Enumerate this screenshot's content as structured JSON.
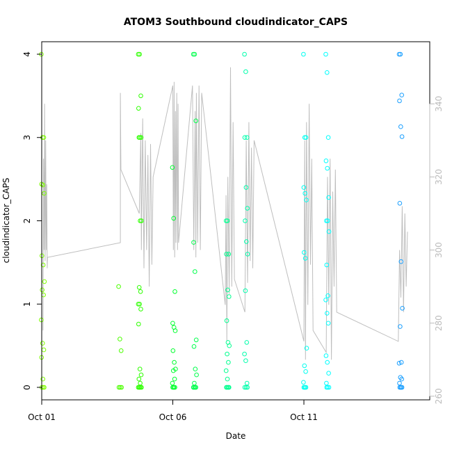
{
  "chart_data": {
    "type": "scatter",
    "title": "ATOM3 Southbound cloudindicator_CAPS",
    "xlabel": "Date",
    "ylabel": "cloudindicator_CAPS",
    "xlim_days": [
      0.0,
      14.8
    ],
    "ylim": [
      -0.15,
      4.15
    ],
    "y2lim": [
      259,
      357
    ],
    "x_ticks": [
      {
        "day": 0,
        "label": "Oct 01"
      },
      {
        "day": 5,
        "label": "Oct 06"
      },
      {
        "day": 10,
        "label": "Oct 11"
      }
    ],
    "y_ticks": [
      0,
      1,
      2,
      3,
      4
    ],
    "y2_ticks": [
      260,
      280,
      300,
      320,
      340
    ],
    "line_color": "#bebebe",
    "clusters": [
      {
        "day": 0.05,
        "color": "#7fff00",
        "values": [
          4,
          3,
          3,
          2.44,
          2.43,
          2.33,
          1.58,
          1.47,
          1.27,
          1.17,
          1.11,
          0.81,
          0.53,
          0.45,
          0.36,
          0.1,
          0,
          0,
          0
        ]
      },
      {
        "day": 3.0,
        "color": "#4cff00",
        "values": [
          1.21,
          0.58,
          0.44,
          0,
          0,
          0
        ]
      },
      {
        "day": 3.75,
        "color": "#2eff00",
        "values": [
          4,
          4,
          3.5,
          3.35,
          3,
          3,
          3,
          2,
          2,
          1.2,
          1.15,
          1,
          1,
          0.94,
          0.76,
          0.22,
          0.15,
          0.1,
          0.05,
          0,
          0,
          0,
          0,
          0
        ]
      },
      {
        "day": 5.05,
        "color": "#00ff2e",
        "values": [
          2.64,
          2.03,
          1.15,
          0.77,
          0.72,
          0.68,
          0.44,
          0.3,
          0.22,
          0.2,
          0.1,
          0.05,
          0,
          0,
          0,
          0
        ]
      },
      {
        "day": 5.85,
        "color": "#00ff4c",
        "values": [
          4,
          4,
          3.2,
          1.74,
          1.39,
          0.57,
          0.49,
          0.22,
          0.15,
          0.05,
          0,
          0,
          0,
          0,
          0
        ]
      },
      {
        "day": 7.1,
        "color": "#00ff8f",
        "values": [
          2,
          2,
          1.6,
          1.6,
          1.17,
          1.09,
          0.8,
          0.54,
          0.5,
          0.4,
          0.3,
          0.2,
          0.1,
          0,
          0,
          0,
          0,
          0
        ]
      },
      {
        "day": 7.8,
        "color": "#00ffac",
        "values": [
          4,
          3.79,
          3,
          3,
          2.4,
          2.15,
          2,
          1.75,
          1.6,
          1.16,
          0.54,
          0.4,
          0.32,
          0.05,
          0,
          0,
          0
        ]
      },
      {
        "day": 10.05,
        "color": "#00fff0",
        "values": [
          4,
          3,
          3,
          2.4,
          2.33,
          2.25,
          1.62,
          1.55,
          0.47,
          0.26,
          0.19,
          0.06,
          0,
          0,
          0,
          0
        ]
      },
      {
        "day": 10.9,
        "color": "#00ffff",
        "values": [
          4,
          3.78,
          3,
          2.72,
          2.63,
          2.28,
          2,
          2,
          1.87,
          1.47,
          1.1,
          1.05,
          0.89,
          0.77,
          0.38,
          0.3,
          0.17,
          0.05,
          0,
          0,
          0
        ]
      },
      {
        "day": 13.7,
        "color": "#1a9fff",
        "values": [
          4,
          4,
          3.51,
          3.44,
          3.13,
          3.01,
          2.21,
          1.51,
          0.95,
          0.73,
          0.3,
          0.29,
          0.12,
          0.1,
          0.05,
          0,
          0,
          0,
          0
        ]
      }
    ],
    "line_points": [
      [
        0.05,
        278
      ],
      [
        0.07,
        325
      ],
      [
        0.09,
        300
      ],
      [
        0.11,
        340
      ],
      [
        0.13,
        297
      ],
      [
        0.15,
        330
      ],
      [
        0.17,
        300
      ],
      [
        0.19,
        318
      ],
      [
        0.21,
        295
      ],
      [
        0.22,
        298
      ],
      [
        3.0,
        302
      ],
      [
        3.0,
        343
      ],
      [
        3.02,
        322
      ],
      [
        3.72,
        310
      ],
      [
        3.78,
        332
      ],
      [
        3.8,
        300
      ],
      [
        3.85,
        336
      ],
      [
        3.9,
        295
      ],
      [
        3.95,
        330
      ],
      [
        4.0,
        300
      ],
      [
        4.05,
        326
      ],
      [
        4.1,
        290
      ],
      [
        4.15,
        329
      ],
      [
        4.2,
        296
      ],
      [
        4.25,
        320
      ],
      [
        5.0,
        345
      ],
      [
        5.02,
        300
      ],
      [
        5.05,
        346
      ],
      [
        5.07,
        298
      ],
      [
        5.1,
        338
      ],
      [
        5.12,
        302
      ],
      [
        5.15,
        343
      ],
      [
        5.18,
        300
      ],
      [
        5.2,
        340
      ],
      [
        5.22,
        302
      ],
      [
        5.75,
        345
      ],
      [
        5.8,
        300
      ],
      [
        5.85,
        338
      ],
      [
        5.88,
        298
      ],
      [
        5.9,
        343
      ],
      [
        5.95,
        302
      ],
      [
        6.0,
        345
      ],
      [
        6.05,
        300
      ],
      [
        6.1,
        343
      ],
      [
        7.0,
        285
      ],
      [
        7.03,
        315
      ],
      [
        7.06,
        275
      ],
      [
        7.1,
        320
      ],
      [
        7.15,
        288
      ],
      [
        7.2,
        350
      ],
      [
        7.25,
        290
      ],
      [
        7.3,
        335
      ],
      [
        7.35,
        292
      ],
      [
        7.75,
        283
      ],
      [
        7.8,
        330
      ],
      [
        7.85,
        291
      ],
      [
        7.9,
        335
      ],
      [
        7.95,
        297
      ],
      [
        8.0,
        328
      ],
      [
        8.05,
        295
      ],
      [
        8.1,
        330
      ],
      [
        10.0,
        275
      ],
      [
        10.03,
        330
      ],
      [
        10.06,
        270
      ],
      [
        10.1,
        335
      ],
      [
        10.15,
        285
      ],
      [
        10.2,
        340
      ],
      [
        10.25,
        296
      ],
      [
        10.3,
        325
      ],
      [
        10.35,
        278
      ],
      [
        10.85,
        272
      ],
      [
        10.9,
        320
      ],
      [
        10.95,
        285
      ],
      [
        11.0,
        325
      ],
      [
        11.05,
        270
      ],
      [
        11.1,
        316
      ],
      [
        11.15,
        290
      ],
      [
        11.2,
        322
      ],
      [
        11.25,
        283
      ],
      [
        13.6,
        275
      ],
      [
        13.65,
        300
      ],
      [
        13.7,
        287
      ],
      [
        13.75,
        312
      ],
      [
        13.8,
        283
      ],
      [
        13.85,
        310
      ],
      [
        13.9,
        290
      ],
      [
        13.95,
        305
      ]
    ]
  }
}
